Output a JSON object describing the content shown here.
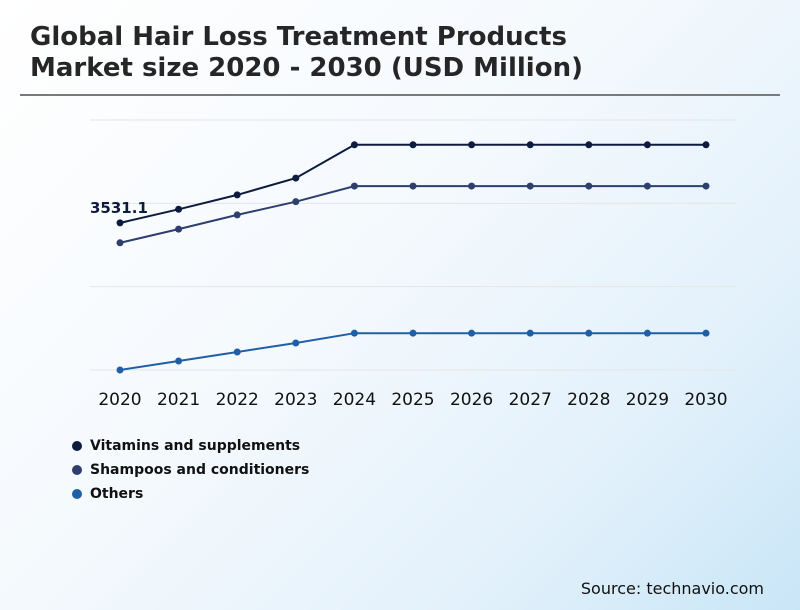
{
  "title_lines": [
    "Global Hair Loss Treatment Products",
    "Market size 2020 - 2030 (USD Million)"
  ],
  "source": "Source: technavio.com",
  "colors": {
    "vitamins": "#0d1b3e",
    "shampoos": "#2e3f6e",
    "others": "#1f5fa8",
    "grid": "#e2e6ea"
  },
  "chart_data": {
    "type": "line",
    "title": "Global Hair Loss Treatment Products Market size 2020 - 2030 (USD Million)",
    "xlabel": "",
    "ylabel": "",
    "categories": [
      "2020",
      "2021",
      "2022",
      "2023",
      "2024",
      "2025",
      "2026",
      "2027",
      "2028",
      "2029",
      "2030"
    ],
    "ylim": [
      0,
      6000
    ],
    "grid": true,
    "legend_position": "bottom-left",
    "series": [
      {
        "name": "Vitamins and supplements",
        "values": [
          3531.1,
          3858,
          4203,
          4606,
          5405,
          5405,
          5405,
          5405,
          5405,
          5405,
          5405
        ]
      },
      {
        "name": "Shampoos and conditioners",
        "values": [
          3053,
          3381,
          3722,
          4040,
          4414,
          4414,
          4414,
          4414,
          4414,
          4414,
          4414
        ]
      },
      {
        "name": "Others",
        "values": [
          0,
          216,
          432,
          648,
          884,
          884,
          884,
          884,
          884,
          884,
          884
        ]
      }
    ],
    "annotations": [
      {
        "series": "Vitamins and supplements",
        "category": "2020",
        "text": "3531.1"
      }
    ]
  }
}
